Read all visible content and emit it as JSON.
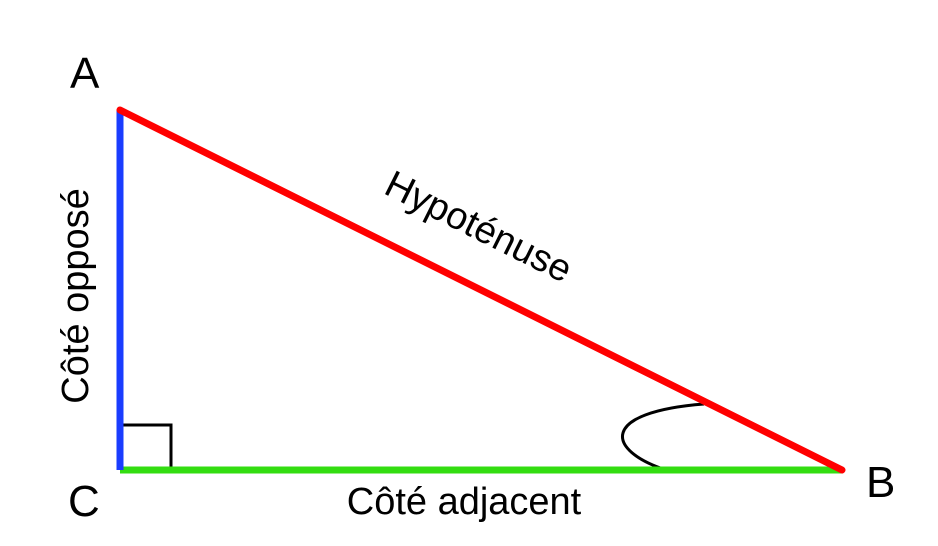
{
  "vertices": {
    "a": "A",
    "b": "B",
    "c": "C"
  },
  "sides": {
    "hypotenuse": "Hypoténuse",
    "opposite": "Côté opposé",
    "adjacent": "Côté adjacent"
  },
  "colors": {
    "hypotenuse": "#ff0000",
    "opposite": "#1a3cff",
    "adjacent": "#33dd11",
    "marks": "#000000"
  }
}
